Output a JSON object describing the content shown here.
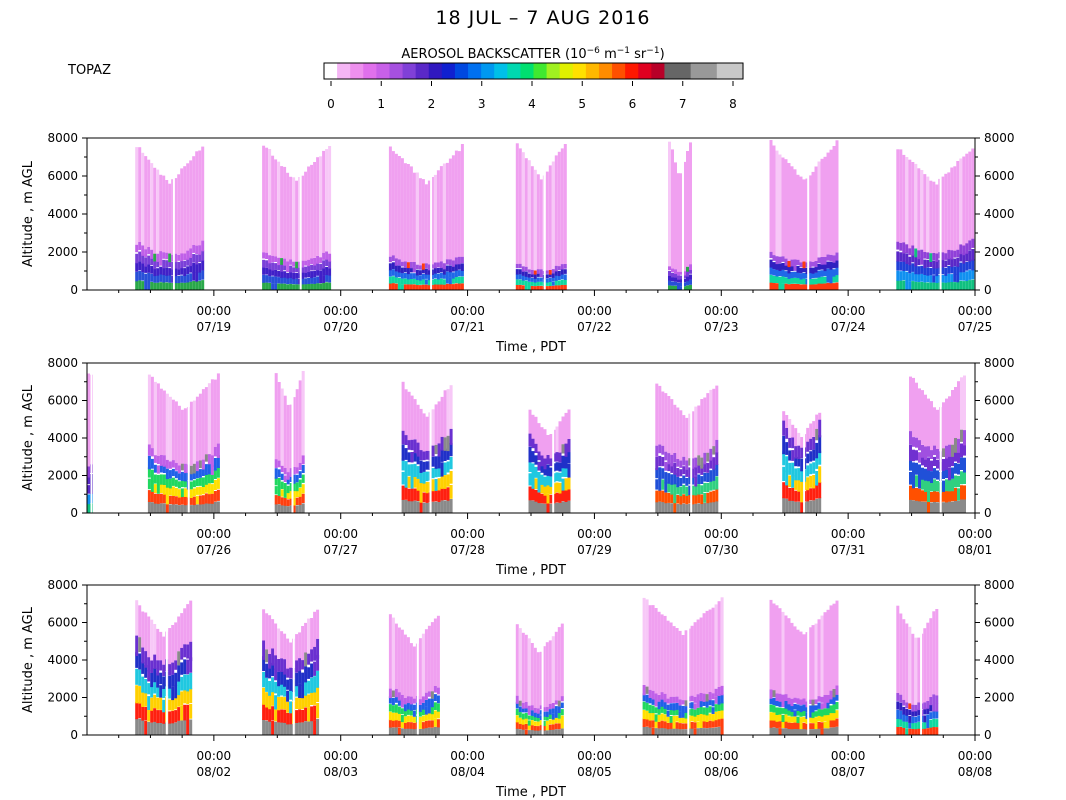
{
  "title": "18 JUL – 7 AUG 2016",
  "instrument": "TOPAZ",
  "colorbar": {
    "title": "AEROSOL BACKSCATTER (10",
    "title_unit_a": "m",
    "title_unit_b": "sr",
    "title_exp1": "−6",
    "title_exp2": "−1",
    "title_exp3": "−1",
    "tick_labels": [
      "0",
      "1",
      "2",
      "3",
      "4",
      "5",
      "6",
      "7",
      "8"
    ],
    "colors": [
      "#ffffff",
      "#f5b6f5",
      "#ee90ee",
      "#e070ec",
      "#c860e8",
      "#a650e0",
      "#8040d8",
      "#5a28c8",
      "#3018c0",
      "#1020d0",
      "#0048e0",
      "#0070f0",
      "#0098f0",
      "#00c0e8",
      "#00d8b0",
      "#00e070",
      "#40e830",
      "#a0f020",
      "#e0f000",
      "#ffe000",
      "#ffb800",
      "#ff8c00",
      "#ff5000",
      "#ff1800",
      "#e00020",
      "#b80028",
      "#666666",
      "#666666",
      "#999999",
      "#999999",
      "#c8c8c8",
      "#c8c8c8"
    ]
  },
  "chart_data": [
    {
      "type": "heatmap",
      "xlabel": "Time , PDT",
      "ylabel": "Altitude , m AGL",
      "ylim": [
        0,
        8000
      ],
      "yticks": [
        0,
        2000,
        4000,
        6000,
        8000
      ],
      "xticks": [
        {
          "time": "00:00",
          "date": "07/19"
        },
        {
          "time": "00:00",
          "date": "07/20"
        },
        {
          "time": "00:00",
          "date": "07/21"
        },
        {
          "time": "00:00",
          "date": "07/22"
        },
        {
          "time": "00:00",
          "date": "07/23"
        },
        {
          "time": "00:00",
          "date": "07/24"
        },
        {
          "time": "00:00",
          "date": "07/25"
        }
      ],
      "xlim_days": [
        0,
        7
      ],
      "segments": [
        {
          "start": 0.38,
          "end": 0.92,
          "top": 7700,
          "layer": 2500,
          "mode": 0
        },
        {
          "start": 1.38,
          "end": 1.92,
          "top": 7800,
          "layer": 2000,
          "mode": 0
        },
        {
          "start": 2.38,
          "end": 2.97,
          "top": 7700,
          "layer": 1800,
          "mode": 1
        },
        {
          "start": 3.38,
          "end": 3.78,
          "top": 7900,
          "layer": 1400,
          "mode": 1
        },
        {
          "start": 4.58,
          "end": 4.78,
          "top": 8000,
          "layer": 1300,
          "mode": 0
        },
        {
          "start": 5.38,
          "end": 5.92,
          "top": 7900,
          "layer": 2000,
          "mode": 1
        },
        {
          "start": 6.38,
          "end": 7.0,
          "top": 7600,
          "layer": 2600,
          "mode": 2
        }
      ]
    },
    {
      "type": "heatmap",
      "xlabel": "Time , PDT",
      "ylabel": "Altitude , m AGL",
      "ylim": [
        0,
        8000
      ],
      "yticks": [
        0,
        2000,
        4000,
        6000,
        8000
      ],
      "xticks": [
        {
          "time": "00:00",
          "date": "07/26"
        },
        {
          "time": "00:00",
          "date": "07/27"
        },
        {
          "time": "00:00",
          "date": "07/28"
        },
        {
          "time": "00:00",
          "date": "07/29"
        },
        {
          "time": "00:00",
          "date": "07/30"
        },
        {
          "time": "00:00",
          "date": "07/31"
        },
        {
          "time": "00:00",
          "date": "08/01"
        }
      ],
      "xlim_days": [
        0,
        7
      ],
      "segments": [
        {
          "start": 0.0,
          "end": 0.05,
          "top": 7500,
          "layer": 2600,
          "mode": 2
        },
        {
          "start": 0.48,
          "end": 1.05,
          "top": 7500,
          "layer": 3500,
          "mode": 3
        },
        {
          "start": 1.48,
          "end": 1.72,
          "top": 7600,
          "layer": 3000,
          "mode": 3
        },
        {
          "start": 2.48,
          "end": 2.88,
          "top": 7000,
          "layer": 4500,
          "mode": 4
        },
        {
          "start": 3.48,
          "end": 3.82,
          "top": 5600,
          "layer": 4000,
          "mode": 4
        },
        {
          "start": 4.48,
          "end": 4.98,
          "top": 7000,
          "layer": 3800,
          "mode": 5
        },
        {
          "start": 5.48,
          "end": 5.78,
          "top": 5500,
          "layer": 4800,
          "mode": 4
        },
        {
          "start": 6.48,
          "end": 6.92,
          "top": 7500,
          "layer": 4500,
          "mode": 5
        }
      ]
    },
    {
      "type": "heatmap",
      "xlabel": "Time , PDT",
      "ylabel": "Altitude , m AGL",
      "ylim": [
        0,
        8000
      ],
      "yticks": [
        0,
        2000,
        4000,
        6000,
        8000
      ],
      "xticks": [
        {
          "time": "00:00",
          "date": "08/02"
        },
        {
          "time": "00:00",
          "date": "08/03"
        },
        {
          "time": "00:00",
          "date": "08/04"
        },
        {
          "time": "00:00",
          "date": "08/05"
        },
        {
          "time": "00:00",
          "date": "08/06"
        },
        {
          "time": "00:00",
          "date": "08/07"
        },
        {
          "time": "00:00",
          "date": "08/08"
        }
      ],
      "xlim_days": [
        0,
        7
      ],
      "segments": [
        {
          "start": 0.38,
          "end": 0.82,
          "top": 7200,
          "layer": 5200,
          "mode": 4
        },
        {
          "start": 1.38,
          "end": 1.82,
          "top": 6800,
          "layer": 5000,
          "mode": 4
        },
        {
          "start": 2.38,
          "end": 2.78,
          "top": 6500,
          "layer": 2600,
          "mode": 3
        },
        {
          "start": 3.38,
          "end": 3.75,
          "top": 6000,
          "layer": 2000,
          "mode": 3
        },
        {
          "start": 4.38,
          "end": 5.02,
          "top": 7400,
          "layer": 2600,
          "mode": 3
        },
        {
          "start": 5.38,
          "end": 5.92,
          "top": 7300,
          "layer": 2500,
          "mode": 3
        },
        {
          "start": 6.38,
          "end": 6.72,
          "top": 6900,
          "layer": 2200,
          "mode": 1
        }
      ]
    }
  ]
}
